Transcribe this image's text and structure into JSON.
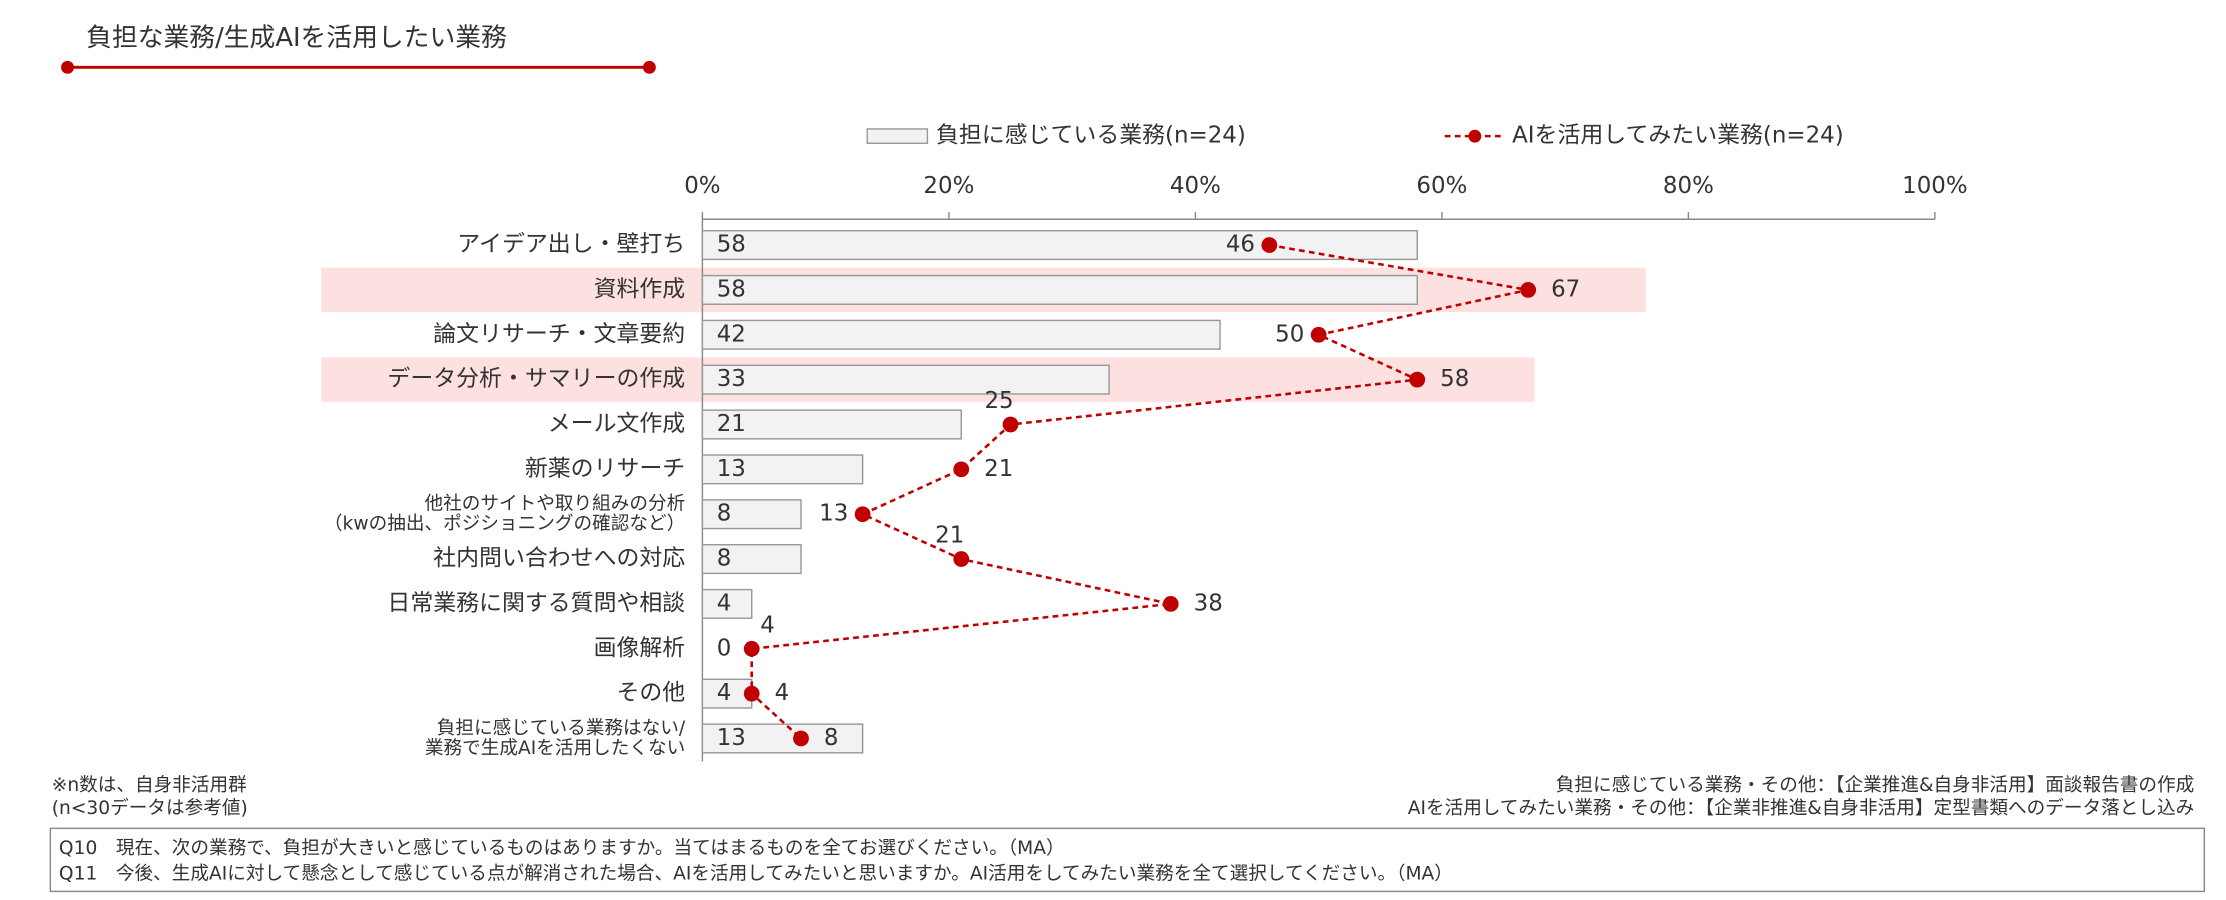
{
  "chart_data": {
    "type": "bar",
    "orientation": "horizontal",
    "title": "負担な業務/生成AIを活用したい業務",
    "categories": [
      "アイデア出し・壁打ち",
      "資料作成",
      "論文リサーチ・文章要約",
      "データ分析・サマリーの作成",
      "メール文作成",
      "新薬のリサーチ",
      [
        "他社のサイトや取り組みの分析",
        "（kwの抽出、ポジショニングの確認など）"
      ],
      "社内問い合わせへの対応",
      "日常業務に関する質問や相談",
      "画像解析",
      "その他",
      [
        "負担に感じている業務はない/",
        "業務で生成AIを活用したくない"
      ]
    ],
    "highlighted_categories": [
      "資料作成",
      "データ分析・サマリーの作成"
    ],
    "series": [
      {
        "name": "負担に感じている業務(n=24)",
        "type": "bar",
        "color": "#f2f2f2",
        "values": [
          58,
          58,
          42,
          33,
          21,
          13,
          8,
          8,
          4,
          0,
          4,
          13
        ]
      },
      {
        "name": "AIを活用してみたい業務(n=24)",
        "type": "line",
        "color": "#c00000",
        "values": [
          46,
          67,
          50,
          58,
          25,
          21,
          13,
          21,
          38,
          4,
          4,
          8
        ]
      }
    ],
    "xlim": [
      0,
      100
    ],
    "xticks": [
      {
        "value": 0,
        "label": "0%"
      },
      {
        "value": 20,
        "label": "20%"
      },
      {
        "value": 40,
        "label": "40%"
      },
      {
        "value": 60,
        "label": "60%"
      },
      {
        "value": 80,
        "label": "80%"
      },
      {
        "value": 100,
        "label": "100%"
      }
    ],
    "legend": "top",
    "notes_left": [
      "※n数は、自身非活用群",
      "(n<30データは参考値)"
    ],
    "notes_right": [
      "負担に感じている業務・その他：【企業推進&自身非活用】面談報告書の作成",
      "AIを活用してみたい業務・その他：【企業非推進&自身非活用】定型書類へのデータ落とし込み"
    ],
    "questions": [
      "Q10　現在、次の業務で、負担が大きいと感じているものはありますか。当てはまるものを全てお選びください。（MA）",
      "Q11　今後、生成AIに対して懸念として感じている点が解消された場合、AIを活用してみたいと思いますか。AI活用をしてみたい業務を全て選択してください。（MA）"
    ]
  }
}
